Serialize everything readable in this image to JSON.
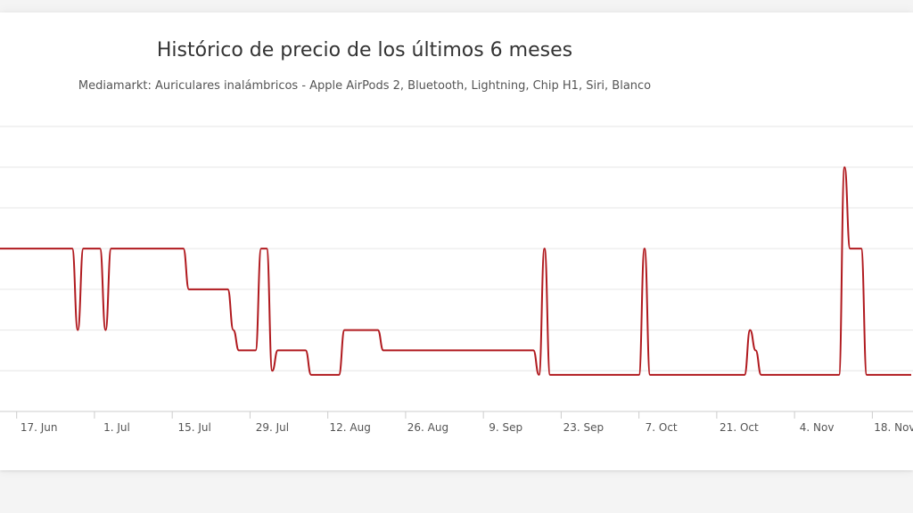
{
  "chart_data": {
    "type": "line",
    "title": "Histórico de precio de los últimos 6 meses",
    "subtitle": "Mediamarkt: Auriculares inalámbricos - Apple AirPods 2, Bluetooth, Lightning, Chip H1, Siri, Blanco",
    "xlabel": "",
    "ylabel": "",
    "x_tick_labels": [
      "17. Jun",
      "1. Jul",
      "15. Jul",
      "29. Jul",
      "12. Aug",
      "26. Aug",
      "9. Sep",
      "23. Sep",
      "7. Oct",
      "21. Oct",
      "4. Nov",
      "18. Nov"
    ],
    "x_tick_dates": [
      "2019-06-17",
      "2019-07-01",
      "2019-07-15",
      "2019-07-29",
      "2019-08-12",
      "2019-08-26",
      "2019-09-09",
      "2019-09-23",
      "2019-10-07",
      "2019-10-21",
      "2019-11-04",
      "2019-11-18"
    ],
    "xlim": [
      "2019-06-14",
      "2019-11-25"
    ],
    "ylim": [
      0,
      7
    ],
    "grid": true,
    "legend": "none",
    "series": [
      {
        "color": "#b0191e",
        "x": [
          "2019-06-14",
          "2019-06-27",
          "2019-06-28",
          "2019-06-29",
          "2019-07-02",
          "2019-07-03",
          "2019-07-04",
          "2019-07-17",
          "2019-07-18",
          "2019-07-25",
          "2019-07-26",
          "2019-07-27",
          "2019-07-30",
          "2019-07-31",
          "2019-08-01",
          "2019-08-02",
          "2019-08-03",
          "2019-08-08",
          "2019-08-09",
          "2019-08-14",
          "2019-08-15",
          "2019-08-21",
          "2019-08-22",
          "2019-09-18",
          "2019-09-19",
          "2019-09-20",
          "2019-09-21",
          "2019-10-07",
          "2019-10-08",
          "2019-10-09",
          "2019-10-26",
          "2019-10-27",
          "2019-10-28",
          "2019-10-29",
          "2019-11-12",
          "2019-11-13",
          "2019-11-14",
          "2019-11-16",
          "2019-11-17",
          "2019-11-25"
        ],
        "y": [
          4,
          4,
          2,
          4,
          4,
          2,
          4,
          4,
          3,
          3,
          2,
          1.5,
          1.5,
          4,
          4,
          1,
          1.5,
          1.5,
          0.9,
          0.9,
          2,
          2,
          1.5,
          1.5,
          0.9,
          4,
          0.9,
          0.9,
          4,
          0.9,
          0.9,
          2,
          1.5,
          0.9,
          0.9,
          6,
          4,
          4,
          0.9,
          0.9
        ]
      }
    ]
  }
}
